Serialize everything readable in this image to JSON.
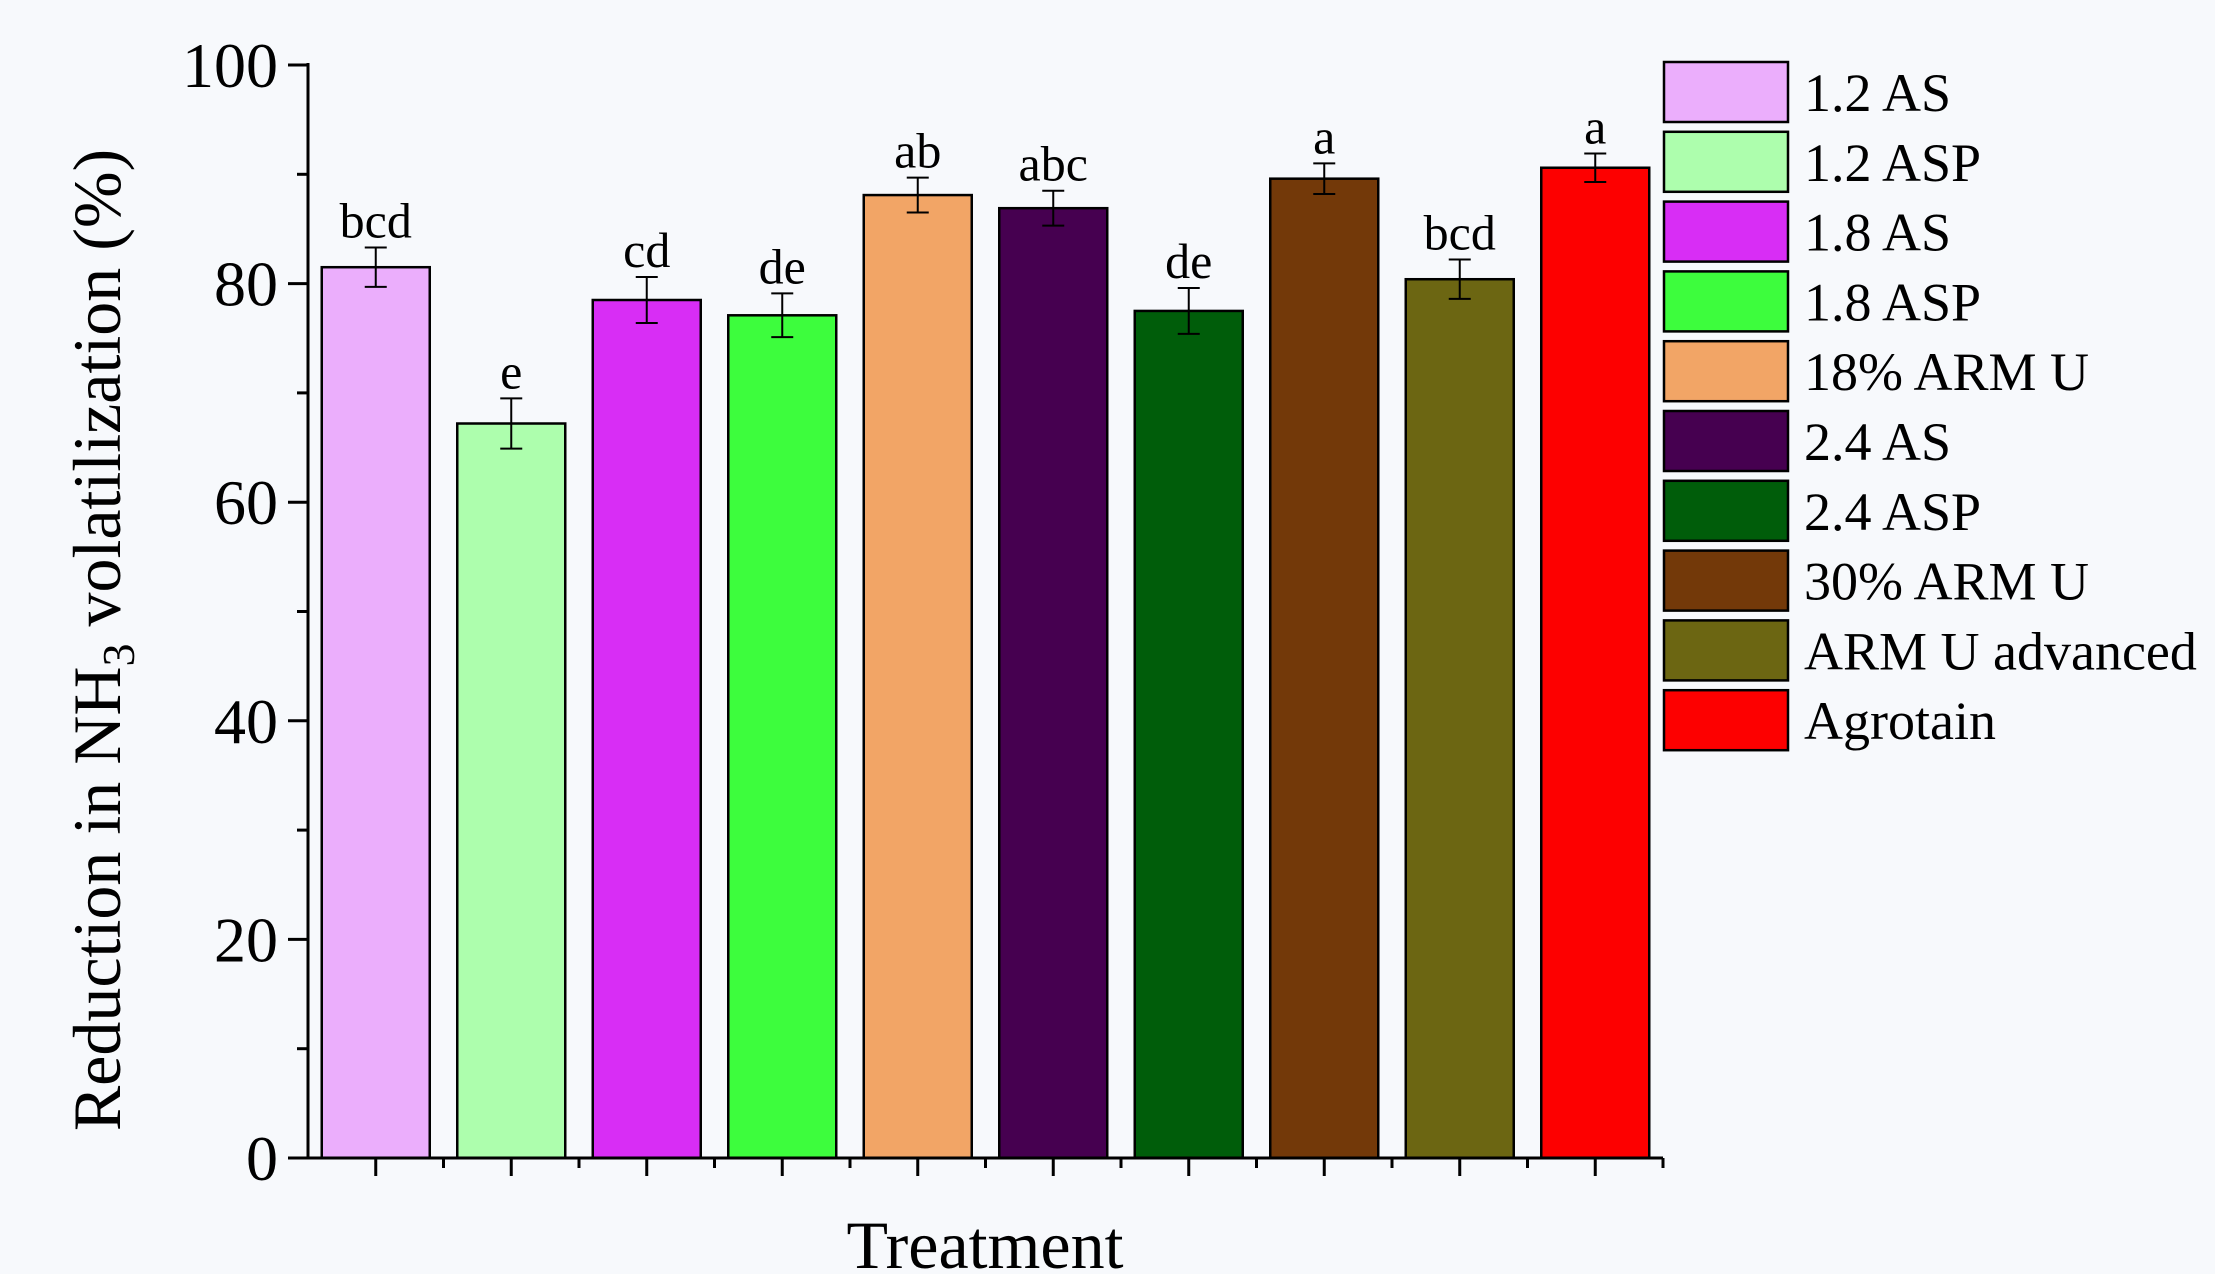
{
  "chart_data": {
    "type": "bar",
    "title": "",
    "xlabel": "Treatment",
    "ylabel": {
      "prefix": "Reduction in NH",
      "subscript": "3",
      "suffix": " volatilization (%)"
    },
    "ylim": [
      0,
      100
    ],
    "yticks": [
      0,
      20,
      40,
      60,
      80,
      100
    ],
    "grid": false,
    "legend_position": "right",
    "categories": [
      "1.2 AS",
      "1.2 ASP",
      "1.8 AS",
      "1.8 ASP",
      "18% ARM U",
      "2.4 AS",
      "2.4 ASP",
      "30% ARM U",
      "ARM U advanced",
      "Agrotain"
    ],
    "values": [
      81.5,
      67.2,
      78.5,
      77.1,
      88.1,
      86.9,
      77.5,
      89.6,
      80.4,
      90.6
    ],
    "errors": [
      1.8,
      2.3,
      2.1,
      2.0,
      1.6,
      1.6,
      2.1,
      1.4,
      1.8,
      1.3
    ],
    "letters": [
      "bcd",
      "e",
      "cd",
      "de",
      "ab",
      "abc",
      "de",
      "a",
      "bcd",
      "a"
    ],
    "colors": [
      "#ebaefc",
      "#adfead",
      "#d82df5",
      "#3dfd3d",
      "#f2a566",
      "#460050",
      "#005d0a",
      "#733909",
      "#6c6612",
      "#fd0000"
    ]
  }
}
